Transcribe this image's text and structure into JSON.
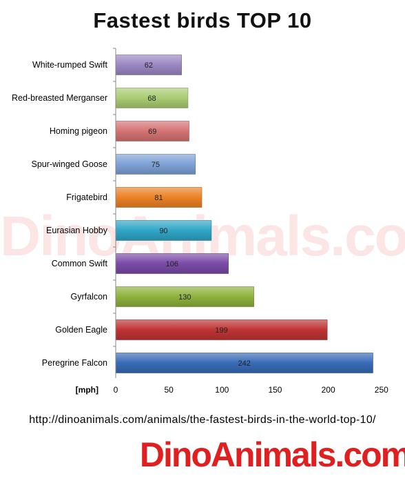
{
  "chart_data": {
    "type": "bar",
    "orientation": "horizontal",
    "title": "Fastest birds TOP 10",
    "xlabel": "[mph]",
    "ylabel": "",
    "xlim": [
      0,
      250
    ],
    "ticks": [
      0,
      50,
      100,
      150,
      200,
      250
    ],
    "grid": false,
    "categories": [
      "White-rumped Swift",
      "Red-breasted Merganser",
      "Homing pigeon",
      "Spur-winged Goose",
      "Frigatebird",
      "Eurasian Hobby",
      "Common Swift",
      "Gyrfalcon",
      "Golden Eagle",
      "Peregrine Falcon"
    ],
    "values": [
      62,
      68,
      69,
      75,
      81,
      90,
      106,
      130,
      199,
      242
    ],
    "colors": [
      "#9a87c2",
      "#a9cc72",
      "#d57373",
      "#7ea1d6",
      "#eb8226",
      "#30a6c6",
      "#7a4ba7",
      "#8eb13c",
      "#bf3434",
      "#386bb7"
    ]
  },
  "footer": {
    "url": "http://dinoanimals.com/animals/the-fastest-birds-in-the-world-top-10/"
  },
  "watermark": "DinoAnimals.com",
  "logo": {
    "text": "DinoAnimals.com",
    "color": "#e02020"
  }
}
